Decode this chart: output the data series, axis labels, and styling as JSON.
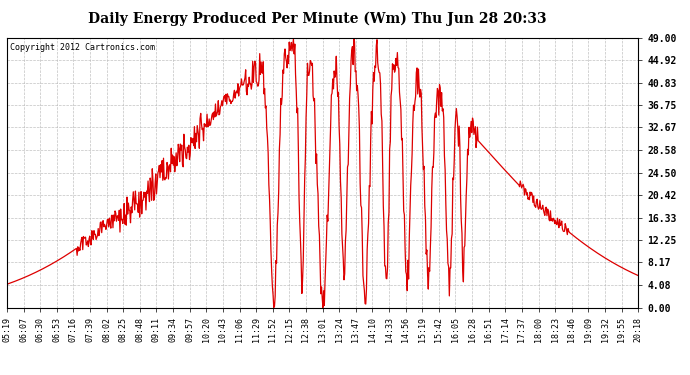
{
  "title": "Daily Energy Produced Per Minute (Wm) Thu Jun 28 20:33",
  "copyright": "Copyright 2012 Cartronics.com",
  "ylabel_right": [
    "49.00",
    "44.92",
    "40.83",
    "36.75",
    "32.67",
    "28.58",
    "24.50",
    "20.42",
    "16.33",
    "12.25",
    "8.17",
    "4.08",
    "0.00"
  ],
  "ymax": 49.0,
  "ymin": 0.0,
  "line_color": "#dd0000",
  "bg_color": "#ffffff",
  "grid_color": "#bbbbbb",
  "x_tick_labels": [
    "05:19",
    "06:07",
    "06:30",
    "06:53",
    "07:16",
    "07:39",
    "08:02",
    "08:25",
    "08:48",
    "09:11",
    "09:34",
    "09:57",
    "10:20",
    "10:43",
    "11:06",
    "11:29",
    "11:52",
    "12:15",
    "12:38",
    "13:01",
    "13:24",
    "13:47",
    "14:10",
    "14:33",
    "14:56",
    "15:19",
    "15:42",
    "16:05",
    "16:28",
    "16:51",
    "17:14",
    "17:37",
    "18:00",
    "18:23",
    "18:46",
    "19:09",
    "19:32",
    "19:55",
    "20:18"
  ]
}
